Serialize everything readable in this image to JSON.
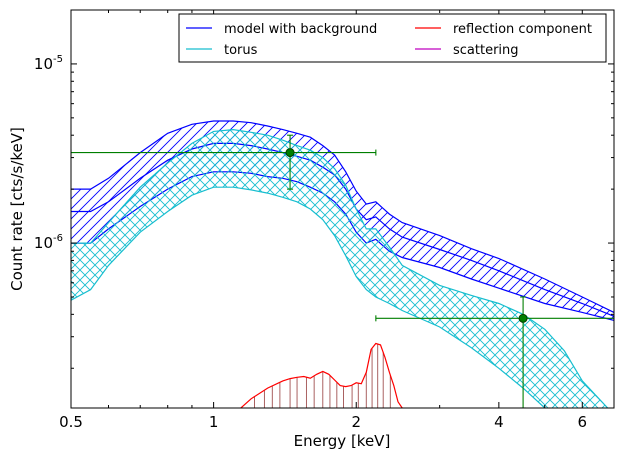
{
  "chart_data": {
    "type": "line",
    "title": "",
    "xlabel": "Energy [keV]",
    "ylabel": "Count rate [cts/s/keV]",
    "x_scale": "log",
    "y_scale": "log",
    "xlim": [
      0.5,
      7.0
    ],
    "ylim": [
      1.2e-07,
      2e-05
    ],
    "grid": false,
    "legend_position": "top-right",
    "x_ticks": [
      {
        "value": 0.5,
        "label": "0.5"
      },
      {
        "value": 1,
        "label": "1"
      },
      {
        "value": 2,
        "label": "2"
      },
      {
        "value": 4,
        "label": "4"
      },
      {
        "value": 6,
        "label": "6"
      }
    ],
    "y_ticks": [
      {
        "value": 1e-06,
        "base": "10",
        "exp": "-6"
      },
      {
        "value": 1e-05,
        "base": "10",
        "exp": "-5"
      }
    ],
    "series": [
      {
        "name": "model with background",
        "color": "#0000ff",
        "band_style": "hatch-diagonal",
        "x": [
          0.5,
          0.55,
          0.6,
          0.7,
          0.8,
          0.9,
          1.0,
          1.1,
          1.2,
          1.3,
          1.4,
          1.5,
          1.6,
          1.7,
          1.8,
          1.9,
          2.0,
          2.1,
          2.2,
          2.35,
          2.5,
          3.0,
          3.5,
          4.0,
          5.0,
          6.0,
          7.0
        ],
        "lower": [
          1e-06,
          1e-06,
          1.2e-06,
          1.6e-06,
          2e-06,
          2.35e-06,
          2.5e-06,
          2.5e-06,
          2.45e-06,
          2.35e-06,
          2.3e-06,
          2.2e-06,
          2.05e-06,
          1.9e-06,
          1.7e-06,
          1.45e-06,
          1.15e-06,
          1e-06,
          1.05e-06,
          9e-07,
          8.3e-07,
          7.3e-07,
          6.3e-07,
          5.6e-07,
          4.6e-07,
          4.1e-07,
          3.7e-07
        ],
        "mid": [
          1.5e-06,
          1.5e-06,
          1.7e-06,
          2.3e-06,
          2.9e-06,
          3.35e-06,
          3.6e-06,
          3.6e-06,
          3.5e-06,
          3.35e-06,
          3.2e-06,
          3.05e-06,
          2.9e-06,
          2.65e-06,
          2.4e-06,
          2e-06,
          1.55e-06,
          1.35e-06,
          1.4e-06,
          1.2e-06,
          1.08e-06,
          9.2e-07,
          8e-07,
          7e-07,
          5.5e-07,
          4.6e-07,
          3.9e-07
        ],
        "upper": [
          2e-06,
          2e-06,
          2.3e-06,
          3.2e-06,
          4.1e-06,
          4.6e-06,
          4.8e-06,
          4.8e-06,
          4.7e-06,
          4.5e-06,
          4.3e-06,
          4.1e-06,
          3.9e-06,
          3.5e-06,
          3.1e-06,
          2.5e-06,
          1.95e-06,
          1.65e-06,
          1.7e-06,
          1.45e-06,
          1.3e-06,
          1.1e-06,
          9.3e-07,
          8.2e-07,
          6.3e-07,
          5e-07,
          4.1e-07
        ]
      },
      {
        "name": "torus",
        "color": "#17becf",
        "band_style": "hatch-cross",
        "x": [
          0.5,
          0.55,
          0.6,
          0.7,
          0.8,
          0.9,
          1.0,
          1.1,
          1.2,
          1.3,
          1.4,
          1.5,
          1.6,
          1.7,
          1.8,
          1.9,
          2.0,
          2.1,
          2.2,
          2.35,
          2.5,
          3.0,
          3.5,
          4.0,
          4.5,
          5.0,
          5.5,
          6.0,
          7.0
        ],
        "lower": [
          4.8e-07,
          5.5e-07,
          7.5e-07,
          1.15e-06,
          1.5e-06,
          1.85e-06,
          2.05e-06,
          2.05e-06,
          1.98e-06,
          1.9e-06,
          1.8e-06,
          1.7e-06,
          1.55e-06,
          1.35e-06,
          1.1e-06,
          8.5e-07,
          6.5e-07,
          5.5e-07,
          5e-07,
          4.6e-07,
          4.2e-07,
          3.4e-07,
          2.6e-07,
          2e-07,
          1.55e-07,
          1.2e-07,
          1e-07,
          9e-08,
          8e-08
        ],
        "upper": [
          1e-06,
          1e-06,
          1.3e-06,
          2.05e-06,
          2.8e-06,
          3.6e-06,
          4.2e-06,
          4.3e-06,
          4.15e-06,
          4e-06,
          3.75e-06,
          3.5e-06,
          3.3e-06,
          3e-06,
          2.6e-06,
          2.1e-06,
          1.55e-06,
          1.2e-06,
          1.2e-06,
          9.5e-07,
          7.5e-07,
          5.8e-07,
          5.1e-07,
          4.6e-07,
          4e-07,
          3.3e-07,
          2.5e-07,
          1.7e-07,
          1.1e-07
        ]
      },
      {
        "name": "reflection component",
        "color": "#ff0000",
        "x": [
          1.1,
          1.2,
          1.3,
          1.4,
          1.45,
          1.5,
          1.55,
          1.6,
          1.65,
          1.7,
          1.75,
          1.8,
          1.85,
          1.9,
          1.95,
          2.0,
          2.05,
          2.1,
          2.15,
          2.2,
          2.25,
          2.3,
          2.35,
          2.4,
          2.45,
          2.5,
          2.6
        ],
        "y": [
          1.1e-07,
          1.35e-07,
          1.55e-07,
          1.7e-07,
          1.75e-07,
          1.78e-07,
          1.8e-07,
          1.76e-07,
          1.85e-07,
          1.92e-07,
          1.85e-07,
          1.72e-07,
          1.6e-07,
          1.58e-07,
          1.6e-07,
          1.66e-07,
          1.64e-07,
          1.9e-07,
          2.55e-07,
          2.75e-07,
          2.7e-07,
          2.3e-07,
          1.9e-07,
          1.6e-07,
          1.3e-07,
          1.2e-07,
          1e-07
        ]
      },
      {
        "name": "scattering",
        "color": "#bf00bf",
        "x": [],
        "y": []
      }
    ],
    "reflection_hatch_x": [
      1.22,
      1.28,
      1.33,
      1.38,
      1.45,
      1.5,
      1.57,
      1.63,
      1.7,
      1.76,
      1.82,
      1.88,
      1.96,
      2.02,
      2.1,
      2.16,
      2.22,
      2.28,
      2.36
    ],
    "data_points": [
      {
        "x": 1.45,
        "y": 3.2e-06,
        "xerr": [
          0.5,
          2.2
        ],
        "yerr": [
          2e-06,
          4e-06
        ]
      },
      {
        "x": 4.5,
        "y": 3.8e-07,
        "xerr": [
          2.2,
          7.0
        ],
        "yerr": [
          1.2e-07,
          5e-07
        ]
      }
    ],
    "data_point_color": "#007f00"
  }
}
